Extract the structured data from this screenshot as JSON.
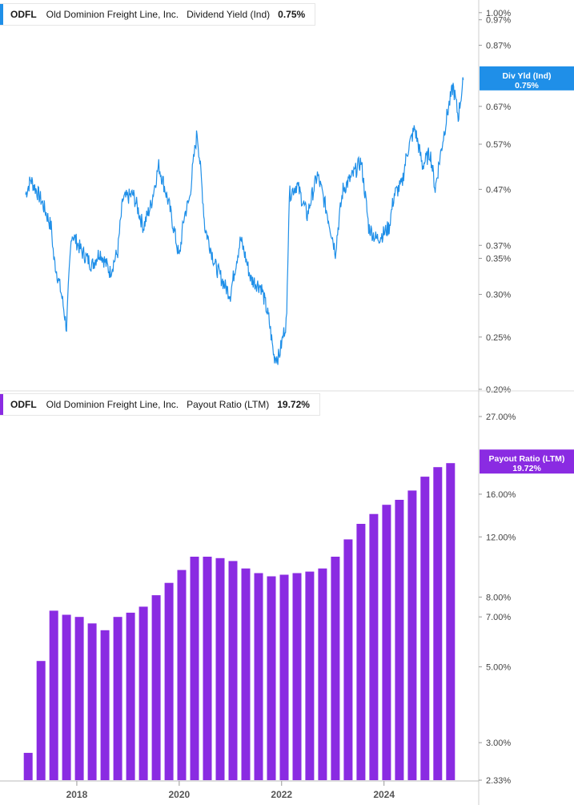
{
  "colors": {
    "yield": "#1f8fe8",
    "payout": "#8a2be2",
    "axis": "#444444",
    "grid": "#dddddd"
  },
  "top_legend": {
    "ticker": "ODFL",
    "company": "Old Dominion Freight Line, Inc.",
    "metric": "Dividend Yield (Ind)",
    "value": "0.75%"
  },
  "bottom_legend": {
    "ticker": "ODFL",
    "company": "Old Dominion Freight Line, Inc.",
    "metric": "Payout Ratio (LTM)",
    "value": "19.72%"
  },
  "chart_data": [
    {
      "type": "line",
      "title": "",
      "series": [
        {
          "name": "Div Yld (Ind)",
          "color": "#1f8fe8"
        }
      ],
      "y_scale": "log",
      "ylim": [
        0.2,
        1.02
      ],
      "y_ticks": [
        "1.00%",
        "0.97%",
        "0.87%",
        "0.67%",
        "0.57%",
        "0.47%",
        "0.37%",
        "0.35%",
        "0.30%",
        "0.25%",
        "0.20%"
      ],
      "y_tick_values": [
        1.0,
        0.97,
        0.87,
        0.67,
        0.57,
        0.47,
        0.37,
        0.35,
        0.3,
        0.25,
        0.2
      ],
      "end_label": {
        "name": "Div Yld (Ind)",
        "value": "0.75%"
      },
      "x": [
        2017.0,
        2017.1,
        2017.3,
        2017.5,
        2017.55,
        2017.7,
        2017.8,
        2017.9,
        2018.1,
        2018.3,
        2018.45,
        2018.65,
        2018.8,
        2018.9,
        2019.1,
        2019.3,
        2019.45,
        2019.6,
        2019.8,
        2020.0,
        2020.1,
        2020.2,
        2020.35,
        2020.5,
        2020.7,
        2020.9,
        2021.0,
        2021.2,
        2021.4,
        2021.6,
        2021.75,
        2021.85,
        2021.95,
        2022.1,
        2022.15,
        2022.3,
        2022.5,
        2022.7,
        2022.85,
        2023.05,
        2023.2,
        2023.4,
        2023.55,
        2023.7,
        2023.85,
        2024.0,
        2024.1,
        2024.2,
        2024.35,
        2024.45,
        2024.6,
        2024.75,
        2024.9,
        2025.0,
        2025.15,
        2025.25,
        2025.35,
        2025.45,
        2025.55
      ],
      "y": [
        0.46,
        0.49,
        0.45,
        0.4,
        0.35,
        0.3,
        0.26,
        0.39,
        0.36,
        0.34,
        0.36,
        0.33,
        0.36,
        0.45,
        0.46,
        0.4,
        0.44,
        0.52,
        0.44,
        0.35,
        0.42,
        0.45,
        0.6,
        0.4,
        0.34,
        0.31,
        0.3,
        0.38,
        0.32,
        0.31,
        0.27,
        0.23,
        0.23,
        0.27,
        0.46,
        0.48,
        0.42,
        0.5,
        0.44,
        0.36,
        0.47,
        0.5,
        0.53,
        0.4,
        0.38,
        0.39,
        0.4,
        0.46,
        0.48,
        0.55,
        0.61,
        0.52,
        0.55,
        0.47,
        0.58,
        0.66,
        0.73,
        0.64,
        0.75
      ]
    },
    {
      "type": "bar",
      "title": "",
      "series": [
        {
          "name": "Payout Ratio (LTM)",
          "color": "#8a2be2"
        }
      ],
      "y_scale": "log",
      "ylim": [
        2.33,
        27.0
      ],
      "y_ticks": [
        "27.00%",
        "16.00%",
        "12.00%",
        "8.00%",
        "7.00%",
        "5.00%",
        "3.00%",
        "2.33%"
      ],
      "y_tick_values": [
        27.0,
        16.0,
        12.0,
        8.0,
        7.0,
        5.0,
        3.0,
        2.33
      ],
      "end_label": {
        "name": "Payout Ratio (LTM)",
        "value": "19.72%"
      },
      "x_ticks": [
        "2018",
        "2020",
        "2022",
        "2024"
      ],
      "x_tick_values": [
        2018,
        2020,
        2022,
        2024
      ],
      "x": [
        2017.05,
        2017.3,
        2017.55,
        2017.8,
        2018.05,
        2018.3,
        2018.55,
        2018.8,
        2019.05,
        2019.3,
        2019.55,
        2019.8,
        2020.05,
        2020.3,
        2020.55,
        2020.8,
        2021.05,
        2021.3,
        2021.55,
        2021.8,
        2022.05,
        2022.3,
        2022.55,
        2022.8,
        2023.05,
        2023.3,
        2023.55,
        2023.8,
        2024.05,
        2024.3,
        2024.55,
        2024.8,
        2025.05,
        2025.3
      ],
      "values": [
        2.8,
        5.2,
        7.3,
        7.1,
        7.0,
        6.7,
        6.4,
        7.0,
        7.2,
        7.5,
        8.1,
        8.8,
        9.6,
        10.5,
        10.5,
        10.4,
        10.2,
        9.7,
        9.4,
        9.2,
        9.3,
        9.4,
        9.5,
        9.7,
        10.5,
        11.8,
        13.1,
        14.0,
        14.9,
        15.4,
        16.4,
        18.0,
        19.2,
        19.72
      ]
    }
  ]
}
